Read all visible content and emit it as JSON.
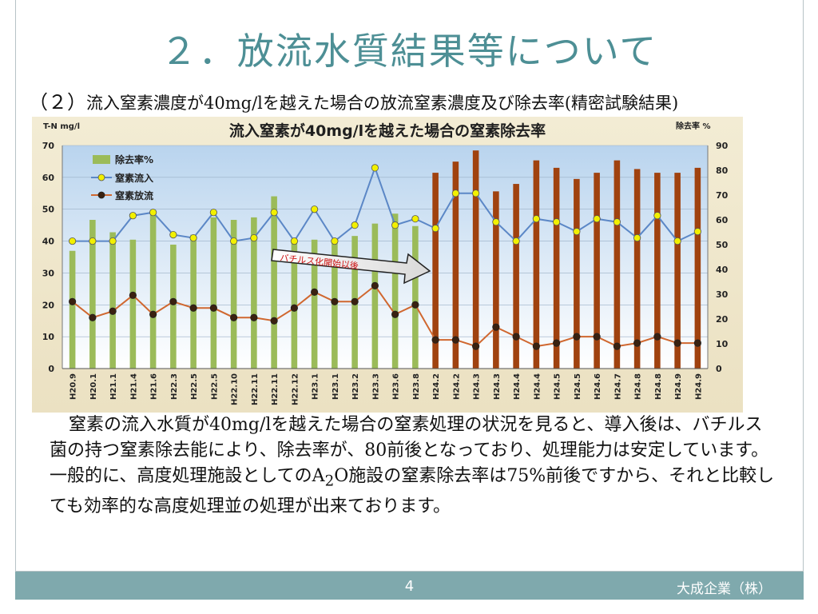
{
  "slide": {
    "title": "２．放流水質結果等について",
    "subtitle_num": "（２）",
    "subtitle_text": "流入窒素濃度が40mg/lを越えた場合の放流窒素濃度及び除去率(精密試験結果)",
    "paragraph1": "窒素の流入水質が40mg/lを越えた場合の窒素処理の状況を見ると、導入後は、バチルス菌の持つ窒素除去能により、除去率が、80前後となっており、処理能力は安定しています。",
    "paragraph2_a": "一般的に、高度処理施設としてのA",
    "paragraph2_sub": "2",
    "paragraph2_b": "O施設の窒素除去率は75%前後ですから、それと比較しても効率的な高度処理並の処理が出来ております。",
    "page_number": "4",
    "company": "大成企業（株）"
  },
  "colors": {
    "title": "#4d8f95",
    "bar_green": "#9bbb59",
    "bar_brown": "#a0420f",
    "line_inflow": "#5b87c6",
    "line_outflow": "#d0672f",
    "footer": "#7fa9ad"
  },
  "chart_data": {
    "type": "bar",
    "title": "流入窒素が40mg/lを越えた場合の窒素除去率",
    "ylabel_left": "T-N mg/l",
    "ylabel_right": "除去率 %",
    "ylim_left": [
      0,
      70
    ],
    "ylim_right": [
      0,
      90
    ],
    "yticks_left": [
      "0",
      "10",
      "20",
      "30",
      "40",
      "50",
      "60",
      "70"
    ],
    "yticks_right": [
      "0",
      "10",
      "20",
      "30",
      "40",
      "50",
      "60",
      "70",
      "80",
      "90"
    ],
    "grid": true,
    "legend_position": "top-left",
    "annotation": "バチルス化開始以後",
    "categories": [
      "H20.9",
      "H20.1",
      "H21.1",
      "H21.4",
      "H21.6",
      "H22.3",
      "H22.5",
      "H22.5",
      "H22.10",
      "H22.11",
      "H22.11",
      "H22.12",
      "H23.1",
      "H23.1",
      "H23.2",
      "H23.3",
      "H23.6",
      "H23.8",
      "H24.2",
      "H24.2",
      "H24.3",
      "H24.3",
      "H24.4",
      "H24.4",
      "H24.5",
      "H24.5",
      "H24.6",
      "H24.7",
      "H24.8",
      "H24.8",
      "H24.9",
      "H24.9"
    ],
    "series": [
      {
        "name": "除去率%",
        "type": "bar",
        "axis": "right",
        "values": [
          47.5,
          60,
          55,
          52,
          64,
          50,
          54,
          61,
          60,
          61,
          69.5,
          52,
          52,
          52,
          53.5,
          58.5,
          62.5,
          57.5,
          79,
          83.5,
          88,
          71.5,
          74.5,
          84,
          81,
          76.5,
          79,
          84,
          80.5,
          79,
          79,
          81
        ]
      },
      {
        "name": "窒素流入",
        "type": "line",
        "axis": "left",
        "values": [
          40,
          40,
          40,
          48,
          49,
          42,
          41,
          49,
          40,
          41,
          49,
          40,
          50,
          40,
          45,
          63,
          45,
          47,
          44,
          55,
          55,
          46,
          40,
          47,
          46,
          43,
          47,
          46,
          41,
          48,
          40,
          43
        ]
      },
      {
        "name": "窒素放流",
        "type": "line",
        "axis": "left",
        "values": [
          21,
          16,
          18,
          23,
          17,
          21,
          19,
          19,
          16,
          16,
          15,
          19,
          24,
          21,
          21,
          26,
          17,
          20,
          9,
          9,
          7,
          13,
          10,
          7,
          8,
          10,
          10,
          7,
          8,
          10,
          8,
          8
        ]
      }
    ],
    "phase_split_index": 18
  }
}
